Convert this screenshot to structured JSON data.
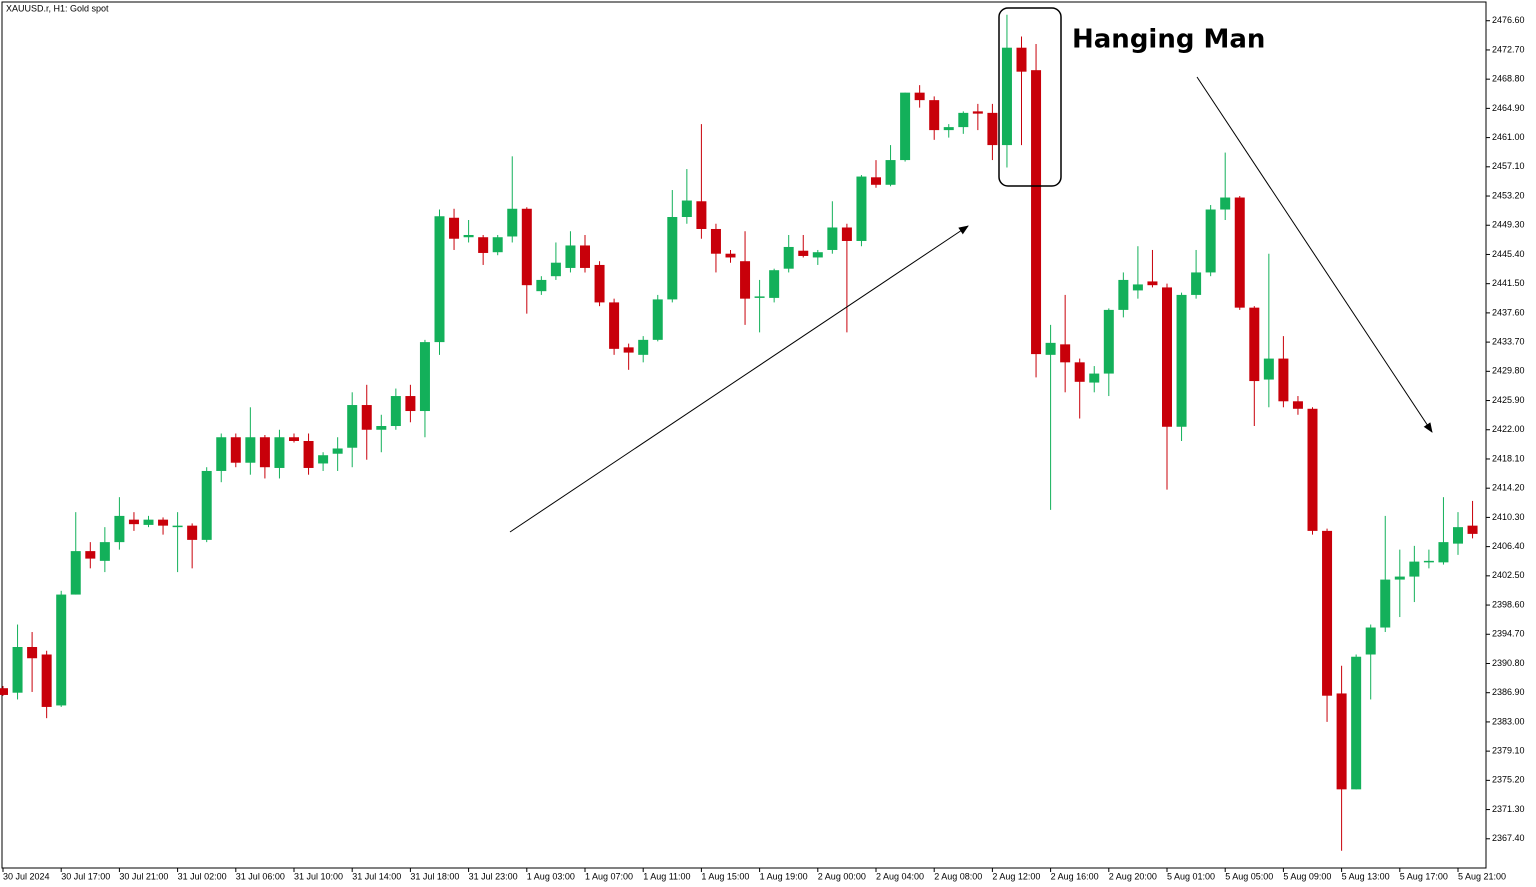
{
  "chart_data": {
    "type": "candlestick",
    "title": "XAUUSD.r, H1:  Gold spot",
    "annotation": "Hanging Man",
    "up_color": "#13b05a",
    "down_color": "#c8000a",
    "categories": [
      "30 Jul 2024",
      null,
      null,
      null,
      "30 Jul 17:00",
      null,
      null,
      null,
      "30 Jul 21:00",
      null,
      null,
      null,
      "31 Jul 02:00",
      null,
      null,
      null,
      "31 Jul 06:00",
      null,
      null,
      null,
      "31 Jul 10:00",
      null,
      null,
      null,
      "31 Jul 14:00",
      null,
      null,
      null,
      "31 Jul 18:00",
      null,
      null,
      null,
      "31 Jul 23:00",
      null,
      null,
      null,
      "1 Aug 03:00",
      null,
      null,
      null,
      "1 Aug 07:00",
      null,
      null,
      null,
      "1 Aug 11:00",
      null,
      null,
      null,
      "1 Aug 15:00",
      null,
      null,
      null,
      "1 Aug 19:00",
      null,
      null,
      null,
      "2 Aug 00:00",
      null,
      null,
      null,
      "2 Aug 04:00",
      null,
      null,
      null,
      "2 Aug 08:00",
      null,
      null,
      null,
      "2 Aug 12:00",
      null,
      null,
      null,
      "2 Aug 16:00",
      null,
      null,
      null,
      "2 Aug 20:00",
      null,
      null,
      null,
      "5 Aug 01:00",
      null,
      null,
      null,
      "5 Aug 05:00",
      null,
      null,
      null,
      "5 Aug 09:00",
      null,
      null,
      null,
      "5 Aug 13:00",
      null,
      null,
      null,
      "5 Aug 17:00",
      null,
      null,
      null,
      "5 Aug 21:00",
      null
    ],
    "open": [
      2387.5,
      2386.9,
      2393,
      2392,
      2385.2,
      2400,
      2405.8,
      2404.5,
      2407,
      2410,
      2409.3,
      2410,
      2409,
      2409.2,
      2407.3,
      2416.5,
      2421,
      2417.6,
      2421,
      2416.9,
      2421,
      2420.5,
      2417.5,
      2418.8,
      2419.6,
      2425.3,
      2422,
      2422.5,
      2426.5,
      2424.5,
      2433.7,
      2450.3,
      2447.7,
      2447.7,
      2445.7,
      2447.8,
      2451.5,
      2440.5,
      2442.5,
      2443.6,
      2446.6,
      2444,
      2439,
      2433,
      2432,
      2434,
      2439.4,
      2450.4,
      2452.5,
      2448.8,
      2445.5,
      2444.5,
      2439.6,
      2439.6,
      2443.5,
      2445.9,
      2445,
      2446,
      2449,
      2447.2,
      2455.7,
      2454.7,
      2458,
      2467,
      2466,
      2462,
      2462.4,
      2464.5,
      2464.3,
      2460,
      2473,
      2470,
      2432,
      2433.4,
      2431,
      2428.3,
      2429.5,
      2438,
      2440.6,
      2441.8,
      2441,
      2422.4,
      2440,
      2443,
      2451.4,
      2453,
      2438.3,
      2428.7,
      2431.5,
      2425.8,
      2424.8,
      2408.5,
      2386.8,
      2374,
      2392,
      2395.6,
      2402,
      2402.4,
      2404.4,
      2404.3,
      2406.8,
      2409.2
    ],
    "high": [
      2387.8,
      2396,
      2395,
      2392.5,
      2400.5,
      2411,
      2407,
      2409,
      2413,
      2411,
      2410.5,
      2410.3,
      2411,
      2409.5,
      2417,
      2421.5,
      2421.5,
      2425,
      2421.3,
      2422,
      2421.5,
      2421.5,
      2419,
      2421,
      2427,
      2428,
      2424,
      2427.5,
      2428,
      2434,
      2451.4,
      2451.5,
      2450,
      2448,
      2448,
      2458.5,
      2451.7,
      2442.5,
      2447,
      2448.5,
      2448,
      2444.5,
      2439.5,
      2433.5,
      2434.5,
      2440,
      2454,
      2456.8,
      2462.8,
      2449.5,
      2446,
      2448.5,
      2442,
      2443.5,
      2448,
      2448,
      2446,
      2452.5,
      2449.5,
      2456,
      2458,
      2460,
      2467,
      2468,
      2466.5,
      2462.8,
      2464.5,
      2465.5,
      2465.5,
      2477.4,
      2474.5,
      2473.5,
      2436,
      2440,
      2431.5,
      2430.5,
      2438.2,
      2443,
      2446.5,
      2446,
      2441.5,
      2440.3,
      2446,
      2452,
      2459,
      2453.2,
      2438.5,
      2445.5,
      2434.5,
      2426.5,
      2425,
      2408.8,
      2390.5,
      2392,
      2396,
      2410.5,
      2406,
      2406.5,
      2406,
      2413,
      2411,
      2412.5
    ],
    "low": [
      2386.5,
      2386,
      2387,
      2383.5,
      2385,
      2400,
      2403.5,
      2403,
      2406,
      2408.5,
      2409,
      2408,
      2403,
      2403.5,
      2407,
      2415,
      2417,
      2416,
      2415.5,
      2415.5,
      2420.3,
      2416,
      2416.5,
      2416.5,
      2417,
      2418,
      2419,
      2422,
      2423,
      2421,
      2432,
      2446,
      2447,
      2444,
      2445.3,
      2447,
      2437.5,
      2440,
      2442,
      2443,
      2443,
      2438.5,
      2432,
      2430,
      2431,
      2433.8,
      2439,
      2449.5,
      2447.5,
      2443,
      2444.3,
      2436,
      2435,
      2439,
      2443,
      2445,
      2444,
      2445.5,
      2435,
      2446.5,
      2454.3,
      2454.5,
      2457.8,
      2465,
      2460.7,
      2461,
      2461.5,
      2462,
      2458,
      2457,
      2460,
      2429,
      2411.3,
      2427,
      2423.5,
      2427,
      2426.5,
      2437,
      2439.5,
      2441,
      2414,
      2420.5,
      2439.5,
      2442.5,
      2450,
      2438,
      2422.5,
      2425,
      2425,
      2424,
      2408,
      2383,
      2365.8,
      2374,
      2386,
      2395,
      2397,
      2399,
      2403.5,
      2404,
      2405.3,
      2407.5
    ],
    "close": [
      2386.6,
      2393,
      2391.5,
      2385,
      2400,
      2405.8,
      2404.8,
      2407,
      2410.5,
      2409.4,
      2410,
      2409.2,
      2409.2,
      2407.3,
      2416.5,
      2421,
      2417.6,
      2421,
      2417,
      2421,
      2420.5,
      2416.9,
      2418.6,
      2419.5,
      2425.3,
      2422,
      2422.5,
      2426.5,
      2424.5,
      2433.7,
      2450.5,
      2447.5,
      2448,
      2445.6,
      2447.7,
      2451.5,
      2441.3,
      2442,
      2444.3,
      2446.6,
      2443.6,
      2439,
      2432.8,
      2432.3,
      2434,
      2439.4,
      2450.4,
      2452.6,
      2448.8,
      2445.5,
      2445,
      2439.5,
      2439.8,
      2443.3,
      2446.4,
      2445.2,
      2445.7,
      2449,
      2447.2,
      2455.8,
      2454.7,
      2458,
      2467,
      2466,
      2462,
      2462.4,
      2464.3,
      2464.2,
      2460,
      2473,
      2469.8,
      2432.1,
      2433.6,
      2431,
      2428.4,
      2429.5,
      2438,
      2442,
      2441.4,
      2441.3,
      2422.4,
      2440,
      2443,
      2451.4,
      2453,
      2438.3,
      2428.5,
      2431.5,
      2425.8,
      2424.8,
      2408.5,
      2386.5,
      2374,
      2391.7,
      2395.6,
      2402,
      2402.4,
      2404.4,
      2404.5,
      2407,
      2409,
      2408.1
    ],
    "ylim": [
      2363.5,
      2479.1
    ],
    "yticks": [
      {
        "value": 2476.6,
        "label": "2476.60"
      },
      {
        "value": 2472.7,
        "label": "2472.70"
      },
      {
        "value": 2468.8,
        "label": "2468.80"
      },
      {
        "value": 2464.9,
        "label": "2464.90"
      },
      {
        "value": 2461.0,
        "label": "2461.00"
      },
      {
        "value": 2457.1,
        "label": "2457.10"
      },
      {
        "value": 2453.2,
        "label": "2453.20"
      },
      {
        "value": 2449.3,
        "label": "2449.30"
      },
      {
        "value": 2445.4,
        "label": "2445.40"
      },
      {
        "value": 2441.5,
        "label": "2441.50"
      },
      {
        "value": 2437.6,
        "label": "2437.60"
      },
      {
        "value": 2433.7,
        "label": "2433.70"
      },
      {
        "value": 2429.8,
        "label": "2429.80"
      },
      {
        "value": 2425.9,
        "label": "2425.90"
      },
      {
        "value": 2422.0,
        "label": "2422.00"
      },
      {
        "value": 2418.1,
        "label": "2418.10"
      },
      {
        "value": 2414.2,
        "label": "2414.20"
      },
      {
        "value": 2410.3,
        "label": "2410.30"
      },
      {
        "value": 2406.4,
        "label": "2406.40"
      },
      {
        "value": 2402.5,
        "label": "2402.50"
      },
      {
        "value": 2398.6,
        "label": "2398.60"
      },
      {
        "value": 2394.7,
        "label": "2394.70"
      },
      {
        "value": 2390.8,
        "label": "2390.80"
      },
      {
        "value": 2386.9,
        "label": "2386.90"
      },
      {
        "value": 2383.0,
        "label": "2383.00"
      },
      {
        "value": 2379.1,
        "label": "2379.10"
      },
      {
        "value": 2375.2,
        "label": "2375.20"
      },
      {
        "value": 2371.3,
        "label": "2371.30"
      },
      {
        "value": 2367.4,
        "label": "2367.40"
      }
    ]
  }
}
